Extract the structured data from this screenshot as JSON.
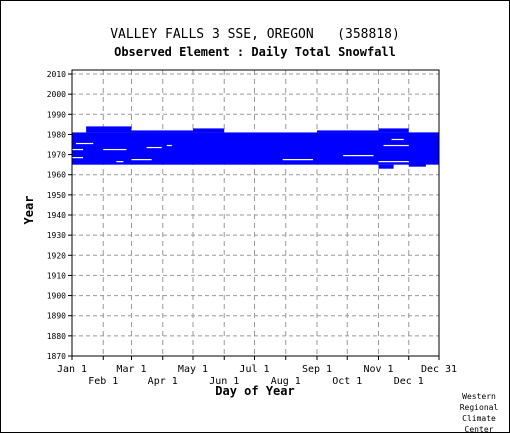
{
  "header": {
    "title": "VALLEY FALLS 3 SSE, OREGON   (358818)",
    "subtitle": "Observed Element : Daily Total Snowfall"
  },
  "credit": [
    "Western",
    "Regional",
    "Climate",
    "Center"
  ],
  "colors": {
    "bars": "#0000ff",
    "grid": "#999999",
    "axis": "#000000"
  },
  "chart_data": {
    "type": "bar",
    "orientation": "horizontal-ranges",
    "xlabel": "Day of Year",
    "ylabel": "Year",
    "ylim": [
      1870,
      2012
    ],
    "xlim": [
      "Jan 1",
      "Dec 31"
    ],
    "grid": true,
    "y_ticks": [
      1870,
      1880,
      1890,
      1900,
      1910,
      1920,
      1930,
      1940,
      1950,
      1960,
      1970,
      1980,
      1990,
      2000,
      2010
    ],
    "x_ticks_upper": [
      "Jan 1",
      "Mar 1",
      "May 1",
      "Jul 1",
      "Sep 1",
      "Nov 1",
      "Dec 31"
    ],
    "x_ticks_lower": [
      "Feb 1",
      "Apr 1",
      "Jun 1",
      "Aug 1",
      "Oct 1",
      "Dec 1"
    ],
    "x_tick_days": {
      "Jan 1": 1,
      "Feb 1": 32,
      "Mar 1": 60,
      "Apr 1": 91,
      "May 1": 121,
      "Jun 1": 152,
      "Jul 1": 182,
      "Aug 1": 213,
      "Sep 1": 244,
      "Oct 1": 274,
      "Nov 1": 305,
      "Dec 1": 335,
      "Dec 31": 365
    },
    "series": [
      {
        "values": [
          {
            "start_day": 1,
            "end_day": 365,
            "year_from": 1965,
            "year_to": 1980
          },
          {
            "start_day": 15,
            "end_day": 60,
            "year_from": 1981,
            "year_to": 1983
          },
          {
            "start_day": 60,
            "end_day": 121,
            "year_from": 1981,
            "year_to": 1981
          },
          {
            "start_day": 121,
            "end_day": 152,
            "year_from": 1981,
            "year_to": 1982
          },
          {
            "start_day": 244,
            "end_day": 305,
            "year_from": 1981,
            "year_to": 1981
          },
          {
            "start_day": 305,
            "end_day": 335,
            "year_from": 1981,
            "year_to": 1982
          },
          {
            "start_day": 335,
            "end_day": 365,
            "year_from": 1969,
            "year_to": 1980
          },
          {
            "start_day": 1,
            "end_day": 15,
            "year_from": 1966,
            "year_to": 1967
          },
          {
            "start_day": 305,
            "end_day": 320,
            "year_from": 1963,
            "year_to": 1964
          },
          {
            "start_day": 335,
            "end_day": 352,
            "year_from": 1964,
            "year_to": 1965
          }
        ]
      }
    ],
    "gaps": [
      {
        "start_day": 1,
        "end_day": 12,
        "year": 1968
      },
      {
        "start_day": 1,
        "end_day": 12,
        "year": 1972
      },
      {
        "start_day": 5,
        "end_day": 22,
        "year": 1975
      },
      {
        "start_day": 32,
        "end_day": 55,
        "year": 1972
      },
      {
        "start_day": 45,
        "end_day": 52,
        "year": 1966
      },
      {
        "start_day": 60,
        "end_day": 80,
        "year": 1967
      },
      {
        "start_day": 75,
        "end_day": 90,
        "year": 1973
      },
      {
        "start_day": 95,
        "end_day": 100,
        "year": 1974
      },
      {
        "start_day": 210,
        "end_day": 240,
        "year": 1967
      },
      {
        "start_day": 270,
        "end_day": 300,
        "year": 1969
      },
      {
        "start_day": 305,
        "end_day": 335,
        "year": 1966
      },
      {
        "start_day": 318,
        "end_day": 330,
        "year": 1977
      },
      {
        "start_day": 310,
        "end_day": 335,
        "year": 1974
      }
    ]
  }
}
